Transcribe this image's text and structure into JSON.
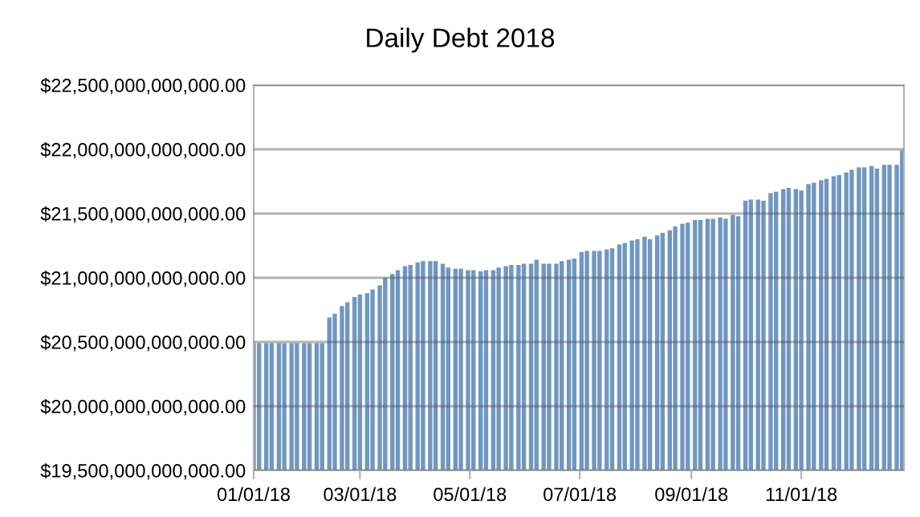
{
  "chart_data": {
    "type": "bar",
    "title": "Daily Debt 2018",
    "color": "#7097c0",
    "grid": "y",
    "x": [
      "2018-01-01",
      "2018-01-04",
      "2018-01-08",
      "2018-01-11",
      "2018-01-15",
      "2018-01-18",
      "2018-01-22",
      "2018-01-25",
      "2018-01-29",
      "2018-02-01",
      "2018-02-05",
      "2018-02-08",
      "2018-02-12",
      "2018-02-15",
      "2018-02-19",
      "2018-02-22",
      "2018-02-26",
      "2018-03-01",
      "2018-03-05",
      "2018-03-08",
      "2018-03-12",
      "2018-03-15",
      "2018-03-19",
      "2018-03-22",
      "2018-03-26",
      "2018-03-29",
      "2018-04-02",
      "2018-04-05",
      "2018-04-09",
      "2018-04-12",
      "2018-04-16",
      "2018-04-19",
      "2018-04-23",
      "2018-04-26",
      "2018-04-30",
      "2018-05-03",
      "2018-05-07",
      "2018-05-10",
      "2018-05-14",
      "2018-05-17",
      "2018-05-21",
      "2018-05-24",
      "2018-05-28",
      "2018-05-31",
      "2018-06-04",
      "2018-06-07",
      "2018-06-11",
      "2018-06-14",
      "2018-06-18",
      "2018-06-21",
      "2018-06-25",
      "2018-06-28",
      "2018-07-02",
      "2018-07-05",
      "2018-07-09",
      "2018-07-12",
      "2018-07-16",
      "2018-07-19",
      "2018-07-23",
      "2018-07-26",
      "2018-07-30",
      "2018-08-02",
      "2018-08-06",
      "2018-08-09",
      "2018-08-13",
      "2018-08-16",
      "2018-08-20",
      "2018-08-23",
      "2018-08-27",
      "2018-08-30",
      "2018-09-03",
      "2018-09-06",
      "2018-09-10",
      "2018-09-13",
      "2018-09-17",
      "2018-09-20",
      "2018-09-24",
      "2018-09-27",
      "2018-10-01",
      "2018-10-04",
      "2018-10-08",
      "2018-10-11",
      "2018-10-15",
      "2018-10-18",
      "2018-10-22",
      "2018-10-25",
      "2018-10-29",
      "2018-11-01",
      "2018-11-05",
      "2018-11-08",
      "2018-11-12",
      "2018-11-15",
      "2018-11-19",
      "2018-11-22",
      "2018-11-26",
      "2018-11-29",
      "2018-12-03",
      "2018-12-06",
      "2018-12-10",
      "2018-12-13",
      "2018-12-17",
      "2018-12-20",
      "2018-12-24",
      "2018-12-27"
    ],
    "values": [
      20490000000000,
      20490000000000,
      20490000000000,
      20490000000000,
      20490000000000,
      20490000000000,
      20490000000000,
      20490000000000,
      20490000000000,
      20490000000000,
      20490000000000,
      20490000000000,
      20690000000000,
      20720000000000,
      20780000000000,
      20810000000000,
      20850000000000,
      20870000000000,
      20880000000000,
      20910000000000,
      20940000000000,
      21000000000000,
      21030000000000,
      21060000000000,
      21090000000000,
      21100000000000,
      21120000000000,
      21130000000000,
      21130000000000,
      21130000000000,
      21110000000000,
      21080000000000,
      21070000000000,
      21070000000000,
      21060000000000,
      21060000000000,
      21050000000000,
      21060000000000,
      21060000000000,
      21080000000000,
      21090000000000,
      21100000000000,
      21100000000000,
      21110000000000,
      21110000000000,
      21140000000000,
      21110000000000,
      21110000000000,
      21110000000000,
      21130000000000,
      21140000000000,
      21150000000000,
      21200000000000,
      21210000000000,
      21210000000000,
      21210000000000,
      21220000000000,
      21230000000000,
      21260000000000,
      21270000000000,
      21290000000000,
      21300000000000,
      21320000000000,
      21300000000000,
      21330000000000,
      21350000000000,
      21370000000000,
      21400000000000,
      21420000000000,
      21430000000000,
      21450000000000,
      21450000000000,
      21460000000000,
      21460000000000,
      21470000000000,
      21460000000000,
      21490000000000,
      21480000000000,
      21600000000000,
      21610000000000,
      21610000000000,
      21600000000000,
      21660000000000,
      21670000000000,
      21690000000000,
      21700000000000,
      21690000000000,
      21680000000000,
      21730000000000,
      21740000000000,
      21760000000000,
      21770000000000,
      21790000000000,
      21800000000000,
      21820000000000,
      21840000000000,
      21860000000000,
      21860000000000,
      21870000000000,
      21850000000000,
      21880000000000,
      21880000000000,
      21880000000000,
      21990000000000
    ],
    "xlim": [
      "2018-01-01",
      "2018-12-28"
    ],
    "xticks": [
      {
        "value": "2018-01-01",
        "label": "01/01/18"
      },
      {
        "value": "2018-03-01",
        "label": "03/01/18"
      },
      {
        "value": "2018-05-01",
        "label": "05/01/18"
      },
      {
        "value": "2018-07-01",
        "label": "07/01/18"
      },
      {
        "value": "2018-09-01",
        "label": "09/01/18"
      },
      {
        "value": "2018-11-01",
        "label": "11/01/18"
      }
    ],
    "ylim": [
      19500000000000,
      22500000000000
    ],
    "yticks": [
      {
        "value": 19500000000000,
        "label": "$19,500,000,000,000.00"
      },
      {
        "value": 20000000000000,
        "label": "$20,000,000,000,000.00"
      },
      {
        "value": 20500000000000,
        "label": "$20,500,000,000,000.00"
      },
      {
        "value": 21000000000000,
        "label": "$21,000,000,000,000.00"
      },
      {
        "value": 21500000000000,
        "label": "$21,500,000,000,000.00"
      },
      {
        "value": 22000000000000,
        "label": "$22,000,000,000,000.00"
      },
      {
        "value": 22500000000000,
        "label": "$22,500,000,000,000.00"
      }
    ]
  }
}
